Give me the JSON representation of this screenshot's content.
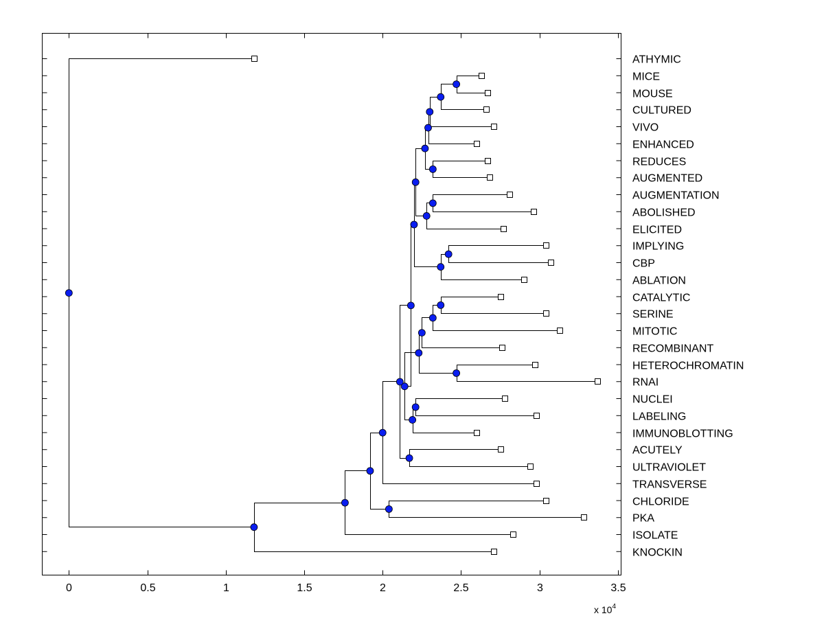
{
  "chart_data": {
    "type": "dendrogram",
    "orientation": "horizontal",
    "title": "",
    "xlabel": "",
    "ylabel": "",
    "x_scale_label": {
      "prefix": "x 10",
      "exponent": "4"
    },
    "xlim": [
      -0.17,
      3.52
    ],
    "xticks": [
      0,
      0.5,
      1,
      1.5,
      2,
      2.5,
      3,
      3.5
    ],
    "xtick_labels": [
      "0",
      "0.5",
      "1",
      "1.5",
      "2",
      "2.5",
      "3",
      "3.5"
    ],
    "y_tick_count": 30,
    "leaves": [
      {
        "label": "ATHYMIC",
        "x": 1.18
      },
      {
        "label": "MICE",
        "x": 2.63
      },
      {
        "label": "MOUSE",
        "x": 2.67
      },
      {
        "label": "CULTURED",
        "x": 2.66
      },
      {
        "label": "VIVO",
        "x": 2.71
      },
      {
        "label": "ENHANCED",
        "x": 2.6
      },
      {
        "label": "REDUCES",
        "x": 2.67
      },
      {
        "label": "AUGMENTED",
        "x": 2.68
      },
      {
        "label": "AUGMENTATION",
        "x": 2.81
      },
      {
        "label": "ABOLISHED",
        "x": 2.96
      },
      {
        "label": "ELICITED",
        "x": 2.77
      },
      {
        "label": "IMPLYING",
        "x": 3.04
      },
      {
        "label": "CBP",
        "x": 3.07
      },
      {
        "label": "ABLATION",
        "x": 2.9
      },
      {
        "label": "CATALYTIC",
        "x": 2.75
      },
      {
        "label": "SERINE",
        "x": 3.04
      },
      {
        "label": "MITOTIC",
        "x": 3.13
      },
      {
        "label": "RECOMBINANT",
        "x": 2.76
      },
      {
        "label": "HETEROCHROMATIN",
        "x": 2.97
      },
      {
        "label": "RNAI",
        "x": 3.37
      },
      {
        "label": "NUCLEI",
        "x": 2.78
      },
      {
        "label": "LABELING",
        "x": 2.98
      },
      {
        "label": "IMMUNOBLOTTING",
        "x": 2.6
      },
      {
        "label": "ACUTELY",
        "x": 2.75
      },
      {
        "label": "ULTRAVIOLET",
        "x": 2.94
      },
      {
        "label": "TRANSVERSE",
        "x": 2.98
      },
      {
        "label": "CHLORIDE",
        "x": 3.04
      },
      {
        "label": "PKA",
        "x": 3.28
      },
      {
        "label": "ISOLATE",
        "x": 2.83
      },
      {
        "label": "KNOCKIN",
        "x": 2.71
      }
    ],
    "merges": [
      {
        "id": "m1",
        "x": 2.47,
        "children": [
          "L1",
          "L2"
        ]
      },
      {
        "id": "m2",
        "x": 2.37,
        "children": [
          "m1",
          "L3"
        ]
      },
      {
        "id": "m3",
        "x": 2.3,
        "children": [
          "m2",
          "L4"
        ]
      },
      {
        "id": "m4",
        "x": 2.29,
        "children": [
          "m3",
          "L5"
        ]
      },
      {
        "id": "m5",
        "x": 2.32,
        "children": [
          "L6",
          "L7"
        ]
      },
      {
        "id": "m6",
        "x": 2.27,
        "children": [
          "m4",
          "m5"
        ]
      },
      {
        "id": "m7",
        "x": 2.32,
        "children": [
          "L8",
          "L9"
        ]
      },
      {
        "id": "m8",
        "x": 2.28,
        "children": [
          "m7",
          "L10"
        ]
      },
      {
        "id": "m9",
        "x": 2.21,
        "children": [
          "m6",
          "m8"
        ]
      },
      {
        "id": "m10",
        "x": 2.42,
        "children": [
          "L11",
          "L12"
        ]
      },
      {
        "id": "m11",
        "x": 2.37,
        "children": [
          "m10",
          "L13"
        ]
      },
      {
        "id": "m12",
        "x": 2.2,
        "children": [
          "m9",
          "m11"
        ]
      },
      {
        "id": "m13",
        "x": 2.37,
        "children": [
          "L14",
          "L15"
        ]
      },
      {
        "id": "m14",
        "x": 2.32,
        "children": [
          "m13",
          "L16"
        ]
      },
      {
        "id": "m15",
        "x": 2.25,
        "children": [
          "m14",
          "L17"
        ]
      },
      {
        "id": "m16",
        "x": 2.47,
        "children": [
          "L18",
          "L19"
        ]
      },
      {
        "id": "m17",
        "x": 2.23,
        "children": [
          "m15",
          "m16"
        ]
      },
      {
        "id": "m18",
        "x": 2.21,
        "children": [
          "L20",
          "L21"
        ]
      },
      {
        "id": "m19",
        "x": 2.19,
        "children": [
          "m18",
          "L22"
        ]
      },
      {
        "id": "m20",
        "x": 2.14,
        "children": [
          "m17",
          "m19"
        ]
      },
      {
        "id": "m21",
        "x": 2.18,
        "children": [
          "m12",
          "m20"
        ]
      },
      {
        "id": "m22",
        "x": 2.17,
        "children": [
          "L23",
          "L24"
        ]
      },
      {
        "id": "m23",
        "x": 2.11,
        "children": [
          "m21",
          "m22"
        ]
      },
      {
        "id": "m24",
        "x": 2.0,
        "children": [
          "m23",
          "L25"
        ]
      },
      {
        "id": "m25",
        "x": 2.04,
        "children": [
          "L26",
          "L27"
        ]
      },
      {
        "id": "m26",
        "x": 1.92,
        "children": [
          "m24",
          "m25"
        ]
      },
      {
        "id": "m27",
        "x": 1.76,
        "children": [
          "m26",
          "L28"
        ]
      },
      {
        "id": "m28",
        "x": 1.18,
        "children": [
          "m27",
          "L29"
        ]
      },
      {
        "id": "m29",
        "x": 0.0,
        "children": [
          "L0",
          "m28"
        ]
      }
    ],
    "leaf_marker": "hollow-square",
    "node_marker": "filled-circle",
    "colors": {
      "node": "#0a1ef0",
      "line": "#000000",
      "leaf_fill": "#ffffff"
    }
  }
}
